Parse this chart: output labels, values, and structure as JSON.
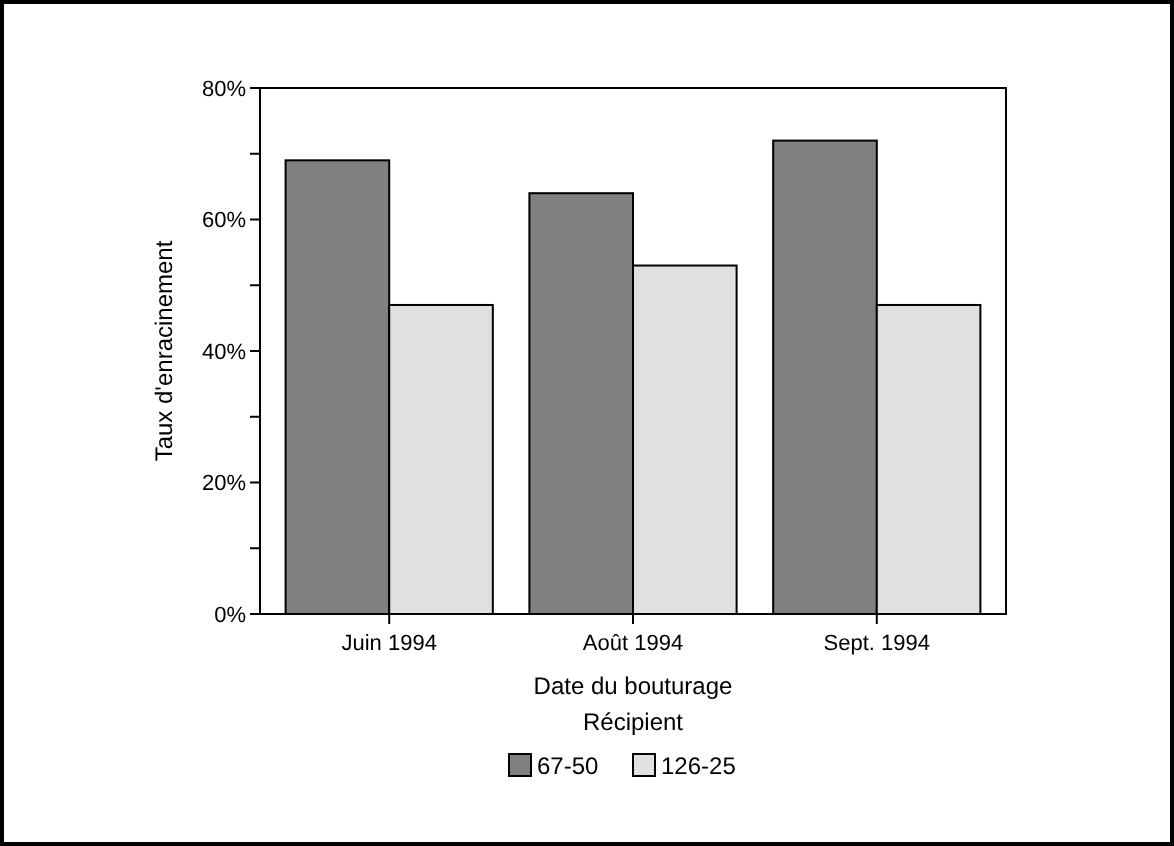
{
  "chart_data": {
    "type": "bar",
    "xlabel": "Date du bouturage",
    "ylabel": "Taux d'enracinement",
    "legend_title": "Récipient",
    "legend": "bottom",
    "categories": [
      "Juin 1994",
      "Août 1994",
      "Sept. 1994"
    ],
    "series": [
      {
        "name": "67-50",
        "color": "#808080",
        "values": [
          69,
          64,
          72
        ]
      },
      {
        "name": "126-25",
        "color": "#e0e0e0",
        "values": [
          47,
          53,
          47
        ]
      }
    ],
    "ylim": [
      0,
      80
    ],
    "yticks": [
      {
        "value": 0,
        "label": "0%"
      },
      {
        "value": 10,
        "label": null
      },
      {
        "value": 20,
        "label": "20%"
      },
      {
        "value": 30,
        "label": null
      },
      {
        "value": 40,
        "label": "40%"
      },
      {
        "value": 50,
        "label": null
      },
      {
        "value": 60,
        "label": "60%"
      },
      {
        "value": 70,
        "label": null
      },
      {
        "value": 80,
        "label": "80%"
      }
    ],
    "grid": false
  }
}
